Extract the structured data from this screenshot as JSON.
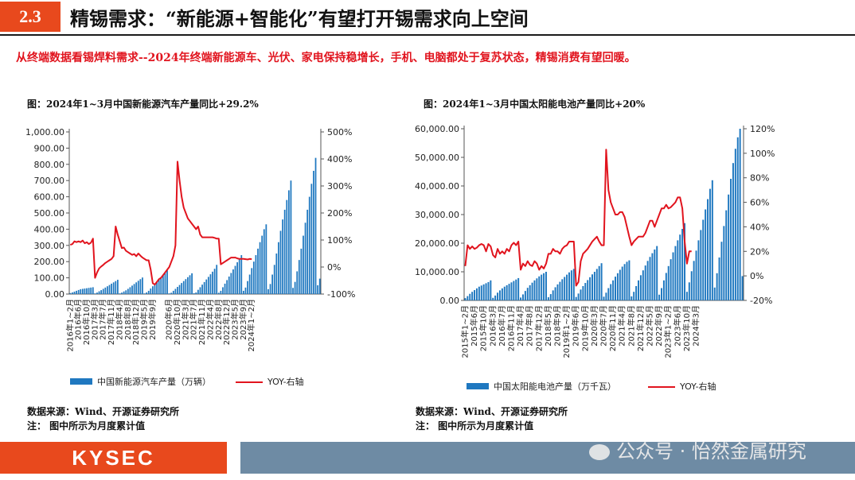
{
  "header": {
    "section": "2.3",
    "title": "精锡需求：“新能源+智能化”有望打开锡需求向上空间"
  },
  "subtitle": "从终端数据看锡焊料需求--2024年终端新能源车、光伏、家电保持稳增长，手机、电脑都处于复苏状态，精锡消费有望回暖。",
  "footer": {
    "brand": "KYSEC",
    "watermark": "公众号 · 怡然金属研究"
  },
  "colors": {
    "bar": "#1f78c0",
    "line": "#e1141e",
    "accent": "#e8491d",
    "band": "#6e8ba4"
  },
  "chart_data": [
    {
      "type": "bar+line",
      "title": "图：2024年1~3月中国新能源汽车产量同比+29.2%",
      "left_axis": {
        "range": [
          0,
          1000
        ],
        "ticks": [
          "1,000.00",
          "900.00",
          "800.00",
          "700.00",
          "600.00",
          "500.00",
          "400.00",
          "300.00",
          "200.00",
          "100.00",
          "0.00"
        ]
      },
      "right_axis": {
        "range": [
          -100,
          500
        ],
        "ticks": [
          "500%",
          "400%",
          "300%",
          "200%",
          "100%",
          "0%",
          "-100%"
        ]
      },
      "x_labels": [
        "2016年1~2月",
        "2016年6月",
        "2016年10月",
        "2017年3月",
        "2017年7月",
        "2017年11月",
        "2018年4月",
        "2018年8月",
        "2018年12月",
        "2019年5月",
        "2019年9月",
        "2020年2月",
        "2020年6月",
        "2020年10月",
        "2021年3月",
        "2021年7月",
        "2021年11月",
        "2022年4月",
        "2022年8月",
        "2022年12月",
        "2023年5月",
        "2023年9月",
        "2024年1~2月"
      ],
      "x_start": [
        2016,
        1
      ],
      "bar_values": [
        6,
        10,
        15,
        20,
        25,
        30,
        32,
        34,
        36,
        38,
        40,
        42,
        4,
        9,
        17,
        24,
        32,
        40,
        48,
        56,
        64,
        72,
        80,
        88,
        4,
        9,
        16,
        23,
        32,
        42,
        52,
        62,
        72,
        82,
        92,
        102,
        4,
        10,
        20,
        34,
        48,
        62,
        76,
        90,
        104,
        118,
        132,
        146,
        4,
        8,
        20,
        32,
        44,
        56,
        68,
        80,
        92,
        104,
        116,
        128,
        5,
        10,
        26,
        42,
        58,
        74,
        90,
        106,
        122,
        138,
        156,
        180,
        8,
        20,
        42,
        64,
        86,
        108,
        130,
        152,
        174,
        196,
        218,
        240,
        20,
        40,
        80,
        120,
        160,
        200,
        240,
        280,
        320,
        360,
        400,
        430,
        30,
        62,
        120,
        180,
        250,
        320,
        390,
        460,
        520,
        580,
        640,
        700,
        38,
        75,
        140,
        210,
        280,
        360,
        440,
        520,
        600,
        680,
        760,
        840,
        54,
        95
      ],
      "bar_legend": "中国新能源汽车产量（万辆）",
      "line_values": [
        82,
        85,
        95,
        92,
        95,
        92,
        98,
        88,
        92,
        85,
        90,
        105,
        -40,
        -20,
        -5,
        2,
        8,
        15,
        20,
        25,
        30,
        40,
        150,
        120,
        95,
        70,
        72,
        60,
        55,
        50,
        45,
        48,
        40,
        50,
        42,
        35,
        30,
        25,
        25,
        -10,
        -60,
        -65,
        -55,
        -45,
        -40,
        -30,
        -20,
        -10,
        0,
        20,
        40,
        80,
        390,
        320,
        260,
        220,
        200,
        180,
        170,
        160,
        150,
        140,
        150,
        120,
        110,
        110,
        110,
        110,
        110,
        110,
        108,
        105,
        105,
        10,
        15,
        20,
        25,
        30,
        35,
        35,
        35,
        32,
        30,
        30,
        30,
        29,
        28,
        30,
        29
      ],
      "line_legend": "YOY-右轴"
    },
    {
      "type": "bar+line",
      "title": "图：2024年1~3月中国太阳能电池产量同比+20%",
      "left_axis": {
        "range": [
          0,
          60000
        ],
        "ticks": [
          "60,000.00",
          "50,000.00",
          "40,000.00",
          "30,000.00",
          "20,000.00",
          "10,000.00",
          "0.00"
        ]
      },
      "right_axis": {
        "range": [
          -20,
          120
        ],
        "ticks": [
          "120%",
          "100%",
          "80%",
          "60%",
          "40%",
          "20%",
          "0%",
          "-20%"
        ]
      },
      "x_labels": [
        "2015年1~2月",
        "2015年6月",
        "2015年10月",
        "2016年3月",
        "2016年7月",
        "2016年11月",
        "2017年4月",
        "2017年8月",
        "2017年12月",
        "2018年5月",
        "2018年9月",
        "2019年1~2月",
        "2019年6月",
        "2019年10月",
        "2020年3月",
        "2020年7月",
        "2020年11月",
        "2021年4月",
        "2021年8月",
        "2021年12月",
        "2022年5月",
        "2022年9月",
        "2023年1~2月",
        "2023年6月",
        "2023年10月",
        "2024年3月"
      ],
      "x_start": [
        2015,
        1
      ],
      "bar_values": [
        800,
        1500,
        2300,
        3000,
        3600,
        4200,
        4800,
        5200,
        5600,
        6000,
        6400,
        7000,
        900,
        1700,
        2700,
        3500,
        4200,
        4800,
        5300,
        5800,
        6300,
        6800,
        7300,
        7800,
        1000,
        2100,
        3300,
        4400,
        5300,
        6200,
        7000,
        7700,
        8400,
        9000,
        9500,
        10000,
        1100,
        2200,
        3500,
        4600,
        5600,
        6500,
        7400,
        8200,
        9000,
        9800,
        10500,
        11000,
        1200,
        2400,
        3800,
        5000,
        6100,
        7100,
        8100,
        9100,
        10000,
        11000,
        12000,
        13000,
        1300,
        2700,
        4300,
        5700,
        7000,
        8300,
        9500,
        10700,
        11800,
        12700,
        13500,
        14000,
        1400,
        3000,
        5000,
        7000,
        8800,
        10500,
        12200,
        13800,
        15200,
        16500,
        17800,
        19000,
        2000,
        4300,
        7000,
        9600,
        12000,
        14400,
        16800,
        19000,
        21000,
        23000,
        25000,
        27000,
        3000,
        6300,
        10200,
        13800,
        17400,
        21000,
        24600,
        28200,
        31800,
        35400,
        39000,
        42000,
        4500,
        9500,
        15000,
        20500,
        26000,
        31500,
        37000,
        42500,
        48000,
        53000,
        57000,
        61000,
        8500
      ],
      "bar_legend": "中国太阳能电池产量（万千瓦）",
      "line_values": [
        8,
        25,
        22,
        24,
        22,
        23,
        25,
        26,
        25,
        20,
        26,
        24,
        17,
        15,
        22,
        18,
        20,
        18,
        22,
        20,
        25,
        27,
        25,
        28,
        5,
        10,
        8,
        12,
        9,
        8,
        12,
        10,
        5,
        8,
        6,
        10,
        18,
        18,
        22,
        20,
        20,
        18,
        22,
        24,
        25,
        28,
        28,
        28,
        -8,
        -5,
        12,
        18,
        20,
        22,
        25,
        28,
        30,
        32,
        28,
        25,
        25,
        103,
        70,
        60,
        55,
        50,
        50,
        52,
        52,
        48,
        40,
        32,
        25,
        28,
        30,
        32,
        32,
        32,
        35,
        40,
        45,
        45,
        40,
        45,
        50,
        55,
        55,
        58,
        55,
        56,
        58,
        60,
        64,
        64,
        55,
        28,
        10,
        20,
        20
      ],
      "line_legend": "YOY-右轴"
    }
  ],
  "notes": {
    "left": {
      "source": "数据来源：Wind、开源证券研究所",
      "note": "注：  图中所示为月度累计值"
    },
    "right": {
      "source": "数据来源：Wind、开源证券研究所",
      "note": "注：  图中所示为月度累计值"
    }
  }
}
